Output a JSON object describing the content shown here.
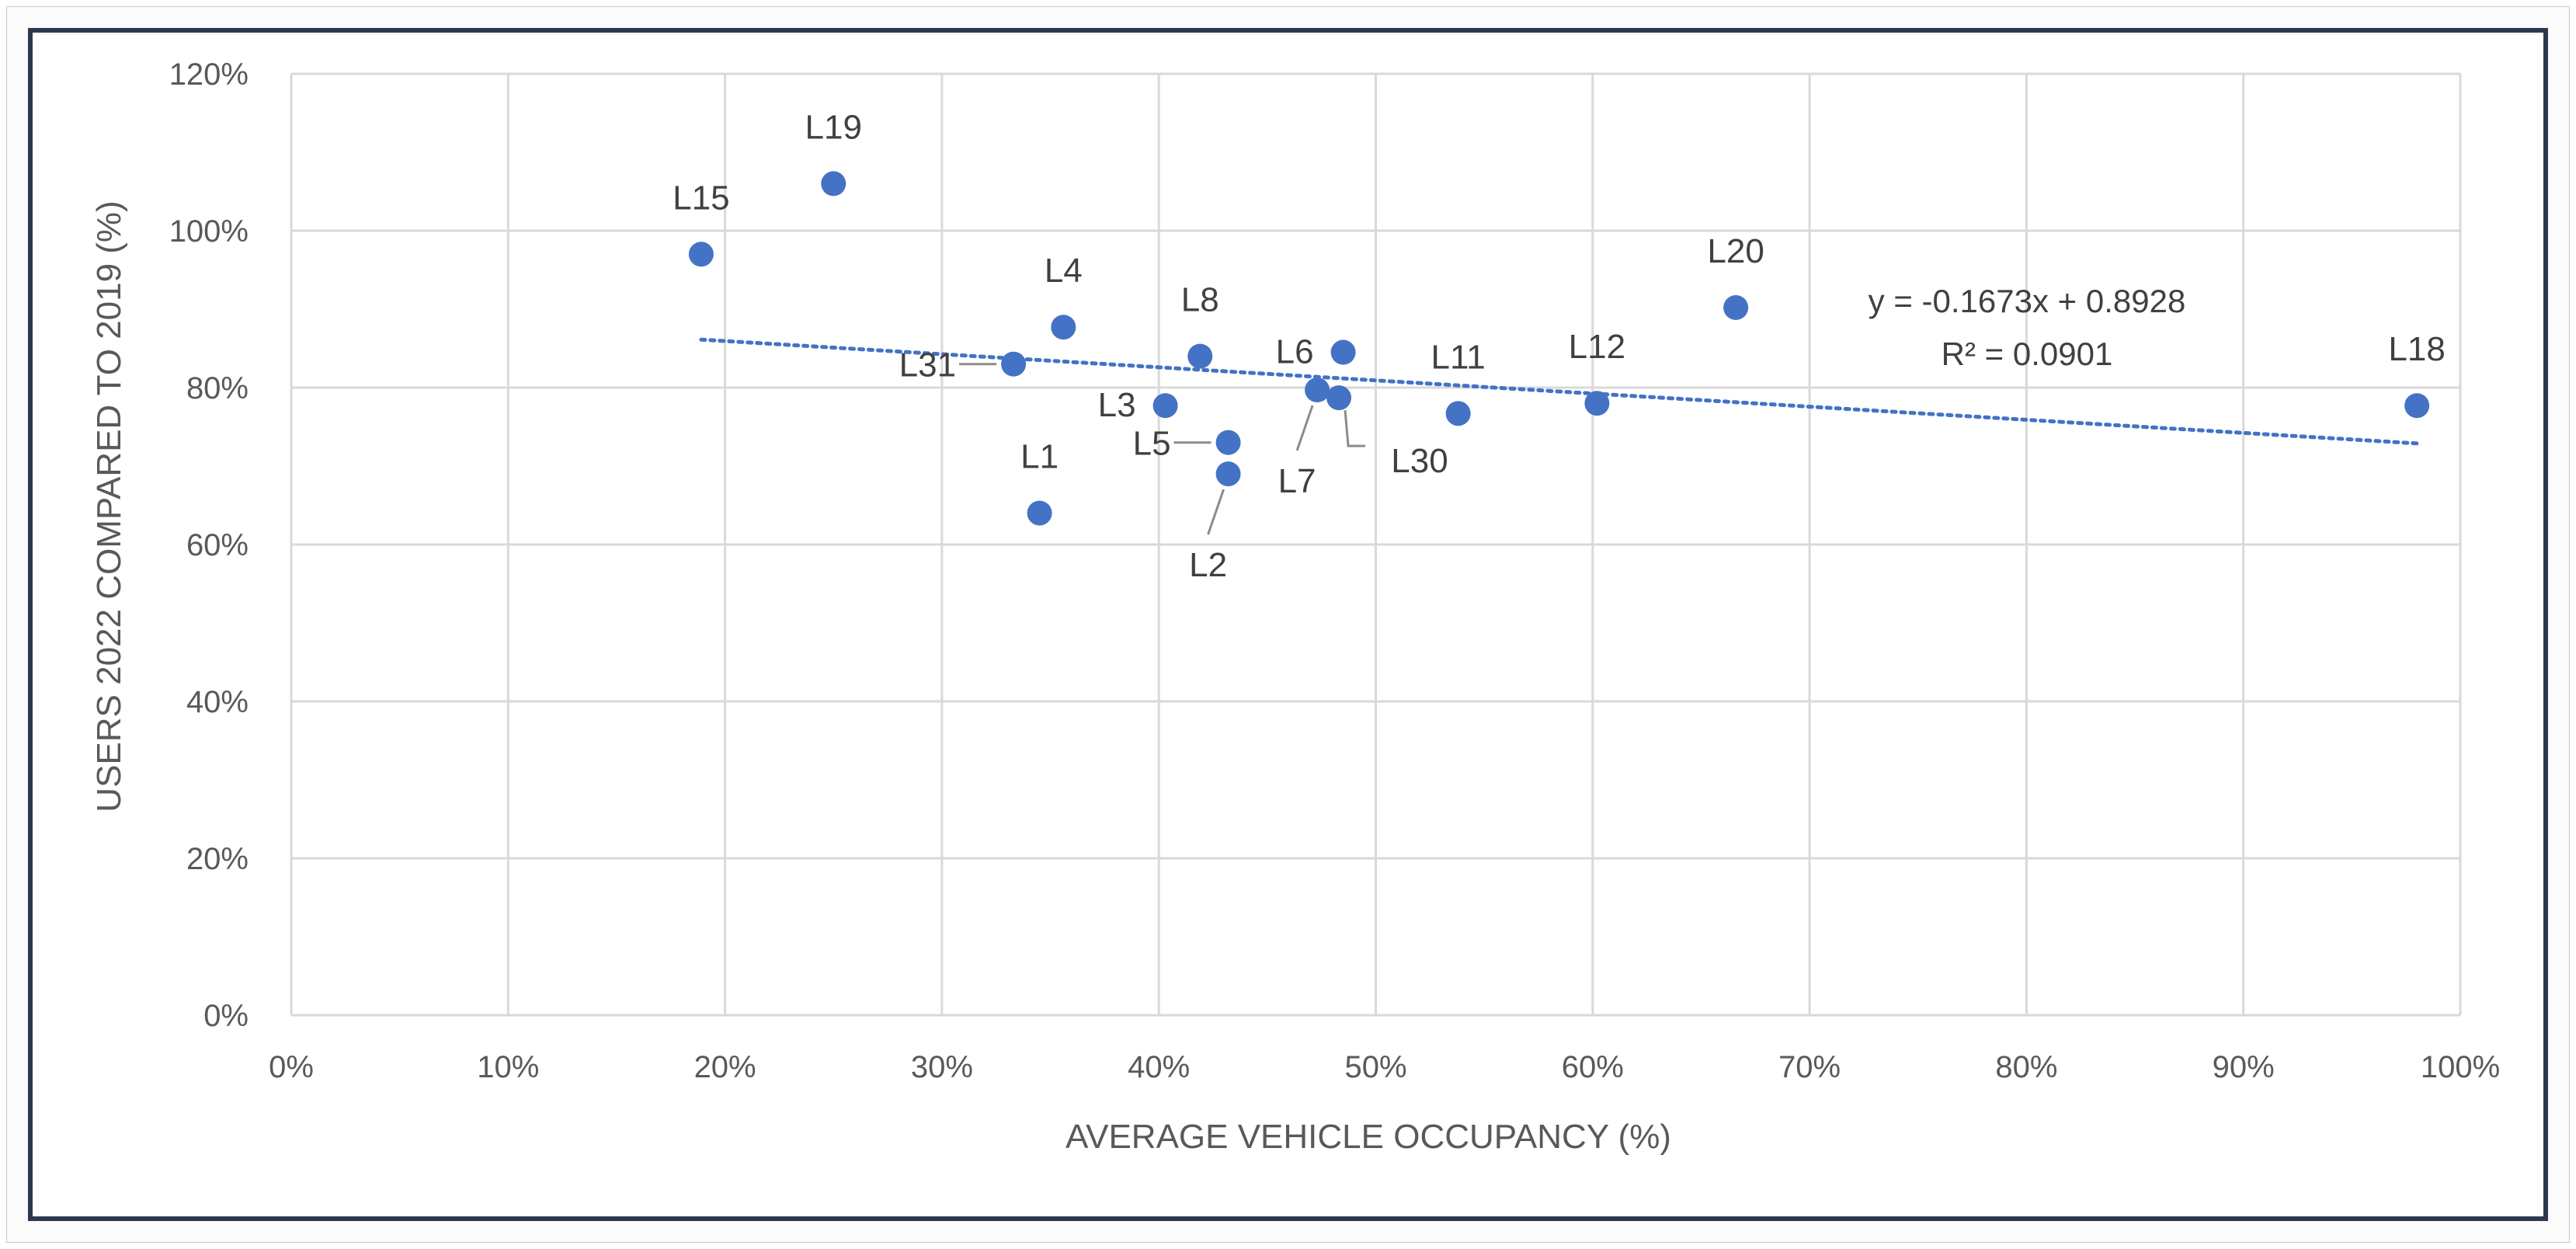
{
  "chart_data": {
    "type": "scatter",
    "title": "",
    "xlabel": "AVERAGE VEHICLE OCCUPANCY (%)",
    "ylabel": "USERS 2022 COMPARED TO 2019 (%)",
    "xlim": [
      0,
      1
    ],
    "ylim": [
      0,
      1.2
    ],
    "x_ticks": [
      0,
      0.1,
      0.2,
      0.3,
      0.4,
      0.5,
      0.6,
      0.7,
      0.8,
      0.9,
      1.0
    ],
    "x_tick_labels": [
      "0%",
      "10%",
      "20%",
      "30%",
      "40%",
      "50%",
      "60%",
      "70%",
      "80%",
      "90%",
      "100%"
    ],
    "y_ticks": [
      0,
      0.2,
      0.4,
      0.6,
      0.8,
      1.0,
      1.2
    ],
    "y_tick_labels": [
      "0%",
      "20%",
      "40%",
      "60%",
      "80%",
      "100%",
      "120%"
    ],
    "grid": true,
    "marker_color": "#4472c4",
    "trendline_color": "#4472c4",
    "points": [
      {
        "label": "L15",
        "x": 0.189,
        "y": 0.97,
        "label_pos": "above"
      },
      {
        "label": "L19",
        "x": 0.25,
        "y": 1.06,
        "label_pos": "above"
      },
      {
        "label": "L4",
        "x": 0.356,
        "y": 0.877,
        "label_pos": "above"
      },
      {
        "label": "L31",
        "x": 0.333,
        "y": 0.83,
        "label_pos": "leader-left"
      },
      {
        "label": "L1",
        "x": 0.345,
        "y": 0.64,
        "label_pos": "above"
      },
      {
        "label": "L3",
        "x": 0.403,
        "y": 0.777,
        "label_pos": "left"
      },
      {
        "label": "L8",
        "x": 0.419,
        "y": 0.84,
        "label_pos": "above"
      },
      {
        "label": "L5",
        "x": 0.432,
        "y": 0.73,
        "label_pos": "leader-left"
      },
      {
        "label": "L2",
        "x": 0.432,
        "y": 0.69,
        "label_pos": "leader-below"
      },
      {
        "label": "L7",
        "x": 0.473,
        "y": 0.797,
        "label_pos": "leader-below"
      },
      {
        "label": "L6",
        "x": 0.485,
        "y": 0.845,
        "label_pos": "left"
      },
      {
        "label": "L30",
        "x": 0.483,
        "y": 0.787,
        "label_pos": "leader-below-right"
      },
      {
        "label": "L11",
        "x": 0.538,
        "y": 0.767,
        "label_pos": "above"
      },
      {
        "label": "L12",
        "x": 0.602,
        "y": 0.78,
        "label_pos": "above"
      },
      {
        "label": "L20",
        "x": 0.666,
        "y": 0.902,
        "label_pos": "above"
      },
      {
        "label": "L18",
        "x": 0.98,
        "y": 0.777,
        "label_pos": "above"
      }
    ],
    "trendline": {
      "type": "linear",
      "x_range": [
        0.189,
        0.98
      ],
      "slope": -0.1673,
      "intercept": 0.8928,
      "equation": "y = -0.1673x + 0.8928",
      "r_squared": "R² = 0.0901"
    }
  }
}
